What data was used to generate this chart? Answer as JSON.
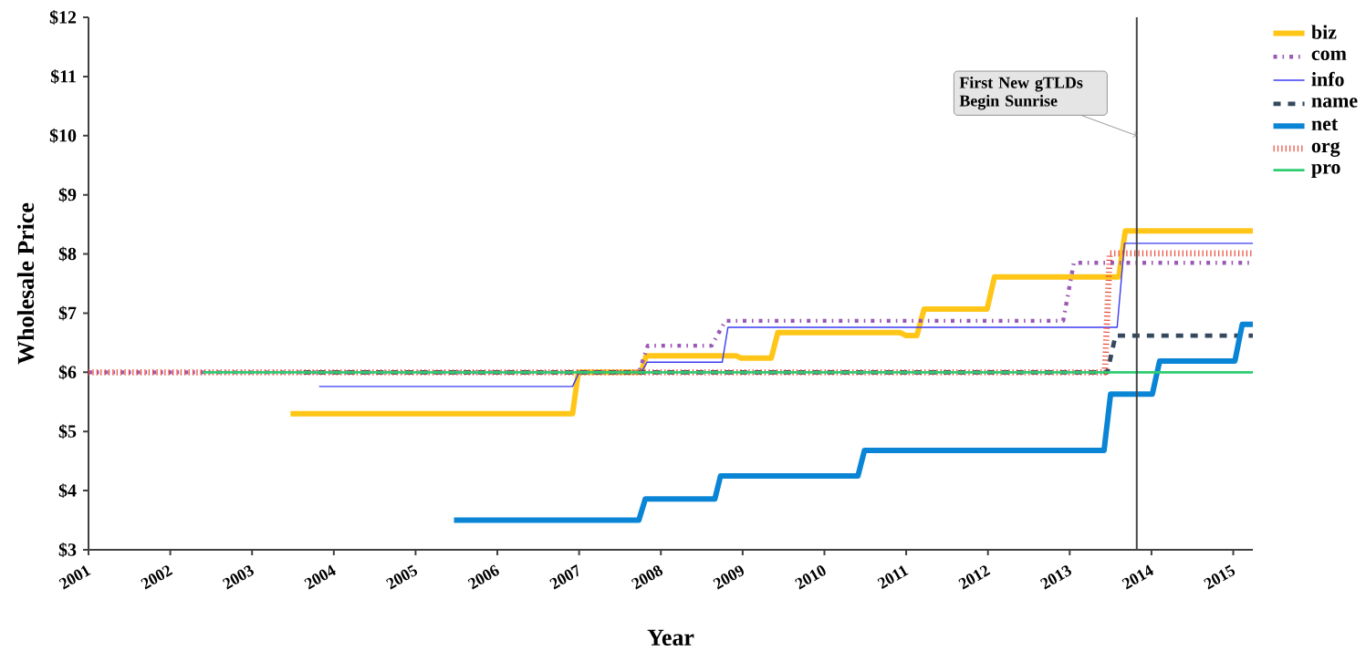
{
  "chart_data": {
    "type": "line",
    "xlabel": "Year",
    "ylabel": "Wholesale Price",
    "xlim": [
      2001,
      2015.24
    ],
    "xticks": [
      2001,
      2002,
      2003,
      2004,
      2005,
      2006,
      2007,
      2008,
      2009,
      2010,
      2011,
      2012,
      2013,
      2014,
      2015
    ],
    "ylim": [
      3,
      12
    ],
    "yticks": [
      {
        "value": 3,
        "label": "$3"
      },
      {
        "value": 4,
        "label": "$4"
      },
      {
        "value": 5,
        "label": "$5"
      },
      {
        "value": 6,
        "label": "$6"
      },
      {
        "value": 7,
        "label": "$7"
      },
      {
        "value": 8,
        "label": "$8"
      },
      {
        "value": 9,
        "label": "$9"
      },
      {
        "value": 10,
        "label": "$10"
      },
      {
        "value": 11,
        "label": "$11"
      },
      {
        "value": 12,
        "label": "$12"
      }
    ],
    "grid": false,
    "legend": "top right",
    "marker": "none",
    "ref_lines": [
      {
        "axis": "x",
        "value": 2013.82,
        "color": "#444444",
        "line_style": "solid"
      }
    ],
    "annotations": [
      {
        "text": "First New gTLDs Begin Sunrise",
        "x": 2013.82,
        "y": 10
      }
    ],
    "series": [
      {
        "name": "biz",
        "color": "#ffc618",
        "line_style": "solid",
        "x": [
          2003.47,
          2006.92,
          2006.99,
          2007.76,
          2007.82,
          2008.92,
          2008.98,
          2009.35,
          2009.43,
          2010.93,
          2011.0,
          2011.13,
          2011.22,
          2011.99,
          2012.08,
          2013.6,
          2013.68,
          2015.24
        ],
        "values": [
          5.3,
          5.3,
          6.0,
          6.0,
          6.28,
          6.28,
          6.24,
          6.24,
          6.67,
          6.67,
          6.62,
          6.62,
          7.07,
          7.07,
          7.61,
          7.61,
          8.39,
          8.39
        ]
      },
      {
        "name": "com",
        "color": "#9b59b6",
        "line_style": "dashdotted",
        "x": [
          2001.0,
          2007.73,
          2007.84,
          2008.62,
          2008.79,
          2012.92,
          2013.05,
          2015.24
        ],
        "values": [
          6.0,
          6.0,
          6.45,
          6.45,
          6.87,
          6.87,
          7.85,
          7.85
        ]
      },
      {
        "name": "info",
        "color": "#3b3bf5",
        "line_style": "solid",
        "x": [
          2003.82,
          2006.92,
          2007.0,
          2007.76,
          2007.83,
          2008.75,
          2008.82,
          2013.58,
          2013.67,
          2015.24
        ],
        "values": [
          5.76,
          5.76,
          6.0,
          6.0,
          6.17,
          6.17,
          6.76,
          6.76,
          8.18,
          8.18
        ]
      },
      {
        "name": "name",
        "color": "#34495e",
        "line_style": "dashed",
        "x": [
          2003.63,
          2013.46,
          2013.56,
          2015.24
        ],
        "values": [
          6.0,
          6.0,
          6.62,
          6.62
        ]
      },
      {
        "name": "net",
        "color": "#0a85d5",
        "line_style": "solid",
        "x": [
          2005.47,
          2007.73,
          2007.81,
          2008.66,
          2008.73,
          2010.41,
          2010.49,
          2013.42,
          2013.5,
          2014.01,
          2014.1,
          2015.02,
          2015.11,
          2015.24
        ],
        "values": [
          3.5,
          3.5,
          3.86,
          3.86,
          4.25,
          4.25,
          4.68,
          4.68,
          5.63,
          5.63,
          6.19,
          6.19,
          6.81,
          6.81
        ]
      },
      {
        "name": "org",
        "color": "#e74c3c",
        "line_style": "dotted",
        "x": [
          2001.0,
          2013.43,
          2013.49,
          2015.24
        ],
        "values": [
          6.0,
          6.0,
          8.01,
          8.01
        ]
      },
      {
        "name": "pro",
        "color": "#2ecc71",
        "line_style": "solid",
        "x": [
          2002.4,
          2015.24
        ],
        "values": [
          6.0,
          6.0
        ]
      }
    ]
  }
}
